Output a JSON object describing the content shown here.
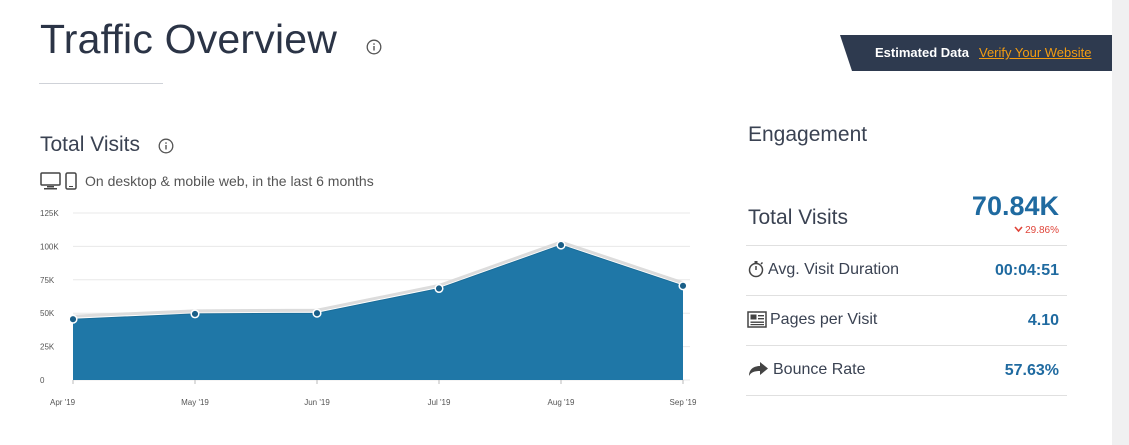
{
  "header": {
    "title": "Traffic Overview",
    "estimated_label": "Estimated Data",
    "verify_link": "Verify Your Website"
  },
  "visits": {
    "title": "Total Visits",
    "description": "On desktop & mobile web, in the last 6 months",
    "icons": [
      "desktop-icon",
      "mobile-icon",
      "info-icon"
    ]
  },
  "chart_data": {
    "type": "area",
    "categories": [
      "Apr '19",
      "May '19",
      "Jun '19",
      "Jul '19",
      "Aug '19",
      "Sep '19"
    ],
    "series": [
      {
        "values": [
          45500,
          49500,
          50000,
          68500,
          101000,
          70500
        ]
      }
    ],
    "yticks": [
      "0",
      "25K",
      "50K",
      "75K",
      "100K",
      "125K"
    ],
    "ylim": [
      0,
      125000
    ],
    "grid": true,
    "color": "#1f77a7"
  },
  "engagement": {
    "title": "Engagement",
    "total_label": "Total Visits",
    "total_value": "70.84K",
    "total_change": "29.86%",
    "metrics": [
      {
        "label": "Avg. Visit Duration",
        "value": "00:04:51",
        "icon": "stopwatch-icon"
      },
      {
        "label": "Pages per Visit",
        "value": "4.10",
        "icon": "pages-icon"
      },
      {
        "label": "Bounce Rate",
        "value": "57.63%",
        "icon": "bounce-arrow-icon"
      }
    ]
  },
  "colors": {
    "accent": "#1f6aa0",
    "banner": "#2e3a4f",
    "link": "#f39c12",
    "negative": "#e0453a"
  }
}
